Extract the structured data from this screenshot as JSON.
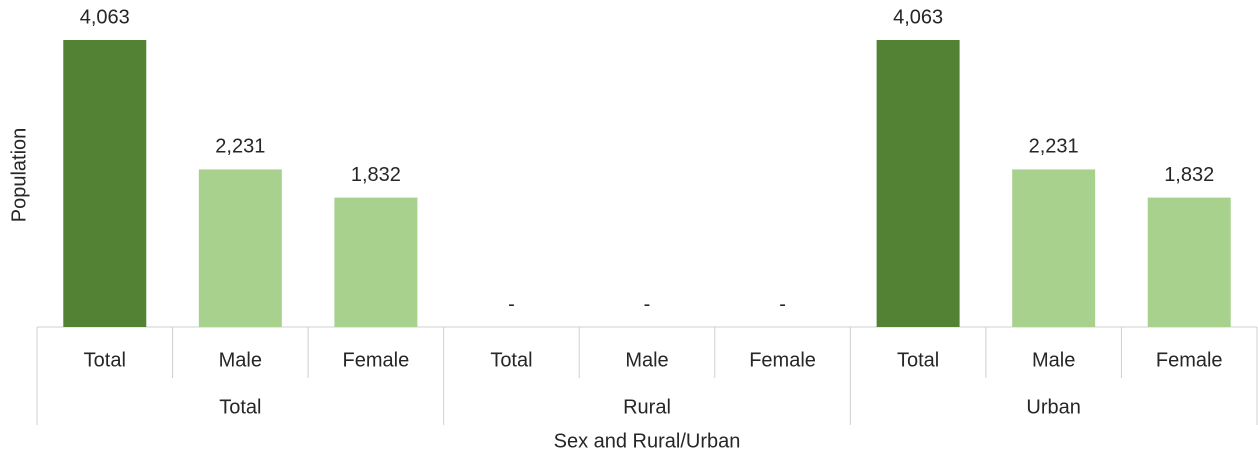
{
  "chart_data": {
    "type": "bar",
    "y_label": "Population",
    "x_label": "Sex and Rural/Urban",
    "groups": [
      "Total",
      "Rural",
      "Urban"
    ],
    "categories": [
      "Total",
      "Male",
      "Female",
      "Total",
      "Male",
      "Female",
      "Total",
      "Male",
      "Female"
    ],
    "values": [
      4063,
      2231,
      1832,
      0,
      0,
      0,
      4063,
      2231,
      1832
    ],
    "value_labels": [
      "4,063",
      "2,231",
      "1,832",
      "-",
      "-",
      "-",
      "4,063",
      "2,231",
      "1,832"
    ],
    "colors": [
      "#548235",
      "#a9d18e",
      "#a9d18e",
      "#548235",
      "#a9d18e",
      "#a9d18e",
      "#548235",
      "#a9d18e",
      "#a9d18e"
    ]
  }
}
